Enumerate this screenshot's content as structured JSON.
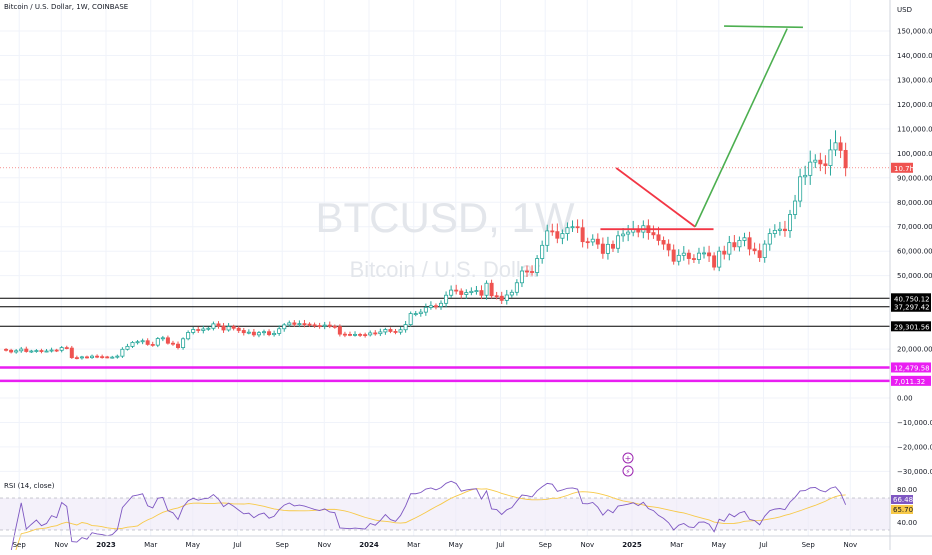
{
  "header": {
    "symbol_title": "Bitcoin / U.S. Dollar, 1W, COINBASE",
    "currency": "USD"
  },
  "watermark": {
    "symbol": "BTCUSD, 1W",
    "name": "Bitcoin / U.S. Dollar"
  },
  "rsi": {
    "label": "RSI (14, close)",
    "value_label": "66.48",
    "ma_label": "65.70",
    "ticks": [
      "80.00",
      "40.00"
    ]
  },
  "current_price_tag": "10.7h",
  "colors": {
    "up": "#26a69a",
    "down": "#ef5350",
    "horizontal_line": "#000000",
    "magenta_line": "#e91ef2",
    "target_line": "#4caf50",
    "drop_line": "#f23645",
    "rsi_line": "#7e57c2",
    "rsi_ma": "#f7c948",
    "rsi_band_fill": "#ede7f6"
  },
  "chart_data": {
    "type": "candlestick",
    "title": "Bitcoin / U.S. Dollar, 1W, COINBASE",
    "ylabel": "USD",
    "ylim": [
      -37000,
      160000
    ],
    "y_ticks": [
      150000,
      140000,
      130000,
      120000,
      110000,
      100000,
      90000,
      80000,
      70000,
      60000,
      50000,
      20000,
      0,
      -10000,
      -20000,
      -30000
    ],
    "y_tick_labels": [
      "150,000.00",
      "140,000.00",
      "130,000.00",
      "120,000.00",
      "110,000.00",
      "100,000.00",
      "90,000.00",
      "80,000.00",
      "70,000.00",
      "60,000.00",
      "50,000.00",
      "20,000.00",
      "0.00",
      "−10,000.00",
      "−20,000.00",
      "−30,000.00"
    ],
    "x_tick_labels": [
      {
        "label": "Sep",
        "t": 2022.67,
        "bold": false
      },
      {
        "label": "Nov",
        "t": 2022.83,
        "bold": false
      },
      {
        "label": "2023",
        "t": 2023.0,
        "bold": true
      },
      {
        "label": "Mar",
        "t": 2023.17,
        "bold": false
      },
      {
        "label": "May",
        "t": 2023.33,
        "bold": false
      },
      {
        "label": "Jul",
        "t": 2023.5,
        "bold": false
      },
      {
        "label": "Sep",
        "t": 2023.67,
        "bold": false
      },
      {
        "label": "Nov",
        "t": 2023.83,
        "bold": false
      },
      {
        "label": "2024",
        "t": 2024.0,
        "bold": true
      },
      {
        "label": "Mar",
        "t": 2024.17,
        "bold": false
      },
      {
        "label": "May",
        "t": 2024.33,
        "bold": false
      },
      {
        "label": "Jul",
        "t": 2024.5,
        "bold": false
      },
      {
        "label": "Sep",
        "t": 2024.67,
        "bold": false
      },
      {
        "label": "Nov",
        "t": 2024.83,
        "bold": false
      },
      {
        "label": "2025",
        "t": 2025.0,
        "bold": true
      },
      {
        "label": "Mar",
        "t": 2025.17,
        "bold": false
      },
      {
        "label": "May",
        "t": 2025.33,
        "bold": false
      },
      {
        "label": "Jul",
        "t": 2025.5,
        "bold": false
      },
      {
        "label": "Sep",
        "t": 2025.67,
        "bold": false
      },
      {
        "label": "Nov",
        "t": 2025.83,
        "bold": false
      }
    ],
    "closes": [
      19500,
      18800,
      19300,
      20000,
      19000,
      19200,
      19400,
      19100,
      19200,
      19600,
      19500,
      20600,
      20400,
      16500,
      16400,
      16800,
      16500,
      17100,
      16900,
      16800,
      16600,
      16700,
      17100,
      19900,
      21100,
      22700,
      23000,
      23400,
      21900,
      21600,
      24300,
      24600,
      22400,
      22000,
      20600,
      24200,
      26800,
      28000,
      27600,
      28200,
      28500,
      30300,
      29400,
      27800,
      29200,
      28500,
      27600,
      26700,
      26900,
      25800,
      26700,
      27100,
      25900,
      26400,
      28300,
      29900,
      30700,
      30100,
      30400,
      30200,
      29900,
      29600,
      29400,
      29800,
      29300,
      29200,
      26100,
      26000,
      25900,
      26000,
      25900,
      25800,
      26600,
      26300,
      27000,
      28000,
      27200,
      26900,
      27900,
      30000,
      34500,
      34500,
      35100,
      37000,
      37700,
      37400,
      38700,
      42000,
      44100,
      43700,
      42300,
      43100,
      43600,
      43900,
      42000,
      46900,
      41800,
      41600,
      39900,
      42100,
      43200,
      47100,
      51900,
      51700,
      51300,
      57000,
      62400,
      68300,
      68000,
      65300,
      67200,
      69600,
      70000,
      69600,
      63900,
      63800,
      64900,
      62900,
      59100,
      62800,
      61200,
      66300,
      67000,
      67800,
      69000,
      67800,
      70400,
      67600,
      66700,
      64400,
      62900,
      60500,
      55900,
      58300,
      59200,
      57000,
      56600,
      59200,
      59300,
      58100,
      53500,
      60000,
      58800,
      63500,
      61800,
      64400,
      65500,
      60900,
      60200,
      57400,
      62900,
      67200,
      68500,
      69000,
      68400,
      75000,
      80500,
      90400,
      91000,
      96400,
      97200,
      95700,
      95000,
      101400,
      104300,
      101200,
      94100
    ],
    "overlays": {
      "horizontal_levels": [
        {
          "value": 40750.12,
          "label": "40,750.12",
          "style": "black"
        },
        {
          "value": 37297.42,
          "label": "37,297.42",
          "style": "black"
        },
        {
          "value": 29301.56,
          "label": "29,301.56",
          "style": "black"
        },
        {
          "value": 12479.58,
          "label": "12,479.58",
          "style": "magenta"
        },
        {
          "value": 7011.32,
          "label": "7,011.32",
          "style": "magenta"
        }
      ],
      "support_line": {
        "value": 69000,
        "t_start": 2024.88,
        "t_end": 2025.31
      },
      "projection_path": [
        {
          "t": 2024.94,
          "v": 94000
        },
        {
          "t": 2025.24,
          "v": 70000
        },
        {
          "t": 2025.59,
          "v": 151000
        }
      ],
      "target_line": {
        "value_start": 152000,
        "value_end": 151500,
        "t_start": 2025.35,
        "t_end": 2025.65
      }
    }
  }
}
